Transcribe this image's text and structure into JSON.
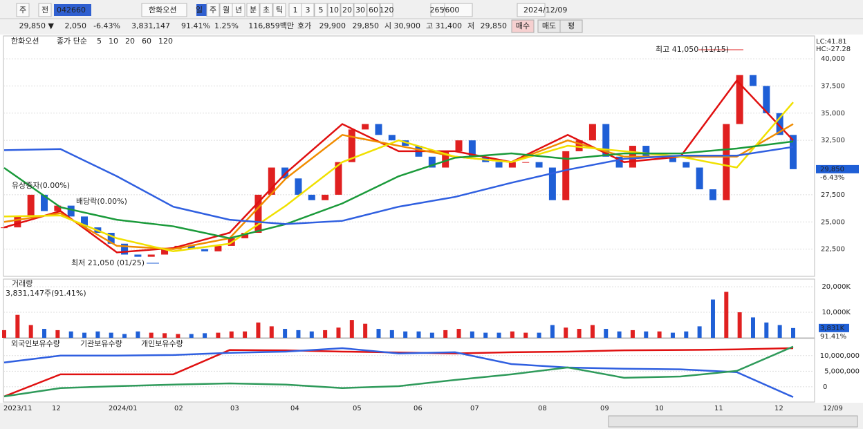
{
  "toolbar": {
    "items": [
      "주",
      "전",
      "042660",
      "한화오션",
      "일",
      "주",
      "월",
      "년",
      "분",
      "초",
      "틱",
      "1",
      "3",
      "5",
      "10",
      "20",
      "30",
      "60",
      "120",
      "265",
      "/600",
      "2024/12/09"
    ]
  },
  "info_bar": {
    "items": [
      "29,850 ▼",
      "2,050",
      "-6.43%",
      "3,831,147",
      "91.41%",
      "1.25%",
      "116,859백만",
      "호가",
      "29,900",
      "29,850",
      "시",
      "30,900",
      "고",
      "31,400",
      "저",
      "29,850",
      "매수",
      "매도",
      "평"
    ]
  },
  "x_labels": [
    "2023/11",
    "12",
    "2024/01",
    "02",
    "03",
    "04",
    "05",
    "06",
    "07",
    "08",
    "09",
    "10",
    "11",
    "12",
    "12/09"
  ],
  "chart_data": [
    {
      "type": "candlestick",
      "title": "한화오션",
      "legend_label": "종가 단순",
      "up_color": "#e02020",
      "down_color": "#1f5fd6",
      "values": [
        24500,
        25500,
        27500,
        26000,
        26500,
        25500,
        24500,
        24000,
        23000,
        22000,
        21800,
        22000,
        22500,
        22800,
        22500,
        22300,
        22800,
        23500,
        24000,
        27500,
        30000,
        29000,
        27500,
        27000,
        27500,
        30500,
        33500,
        34000,
        33000,
        32500,
        32000,
        31000,
        30000,
        31500,
        32500,
        31000,
        30500,
        30000,
        30500,
        30500,
        30000,
        27000,
        31500,
        32500,
        34000,
        31000,
        30000,
        32000,
        31000,
        31000,
        30500,
        30000,
        28000,
        27000,
        34000,
        38500,
        37500,
        35000,
        33000,
        29850
      ],
      "series": [
        {
          "name": "5",
          "color": "#e01010",
          "values": [
            24500,
            26000,
            22200,
            22600,
            24000,
            29500,
            34000,
            31500,
            31500,
            30500,
            33000,
            30500,
            31000,
            38000,
            32500
          ]
        },
        {
          "name": "10",
          "color": "#f08c00",
          "values": [
            25000,
            25800,
            22800,
            22500,
            23500,
            29000,
            33000,
            32000,
            31000,
            30500,
            32500,
            31000,
            31000,
            31000,
            34000
          ]
        },
        {
          "name": "20",
          "color": "#f0e000",
          "values": [
            25500,
            25600,
            23500,
            22300,
            23000,
            26500,
            30500,
            32500,
            31000,
            30500,
            32000,
            31500,
            31000,
            30000,
            36000
          ]
        },
        {
          "name": "60",
          "color": "#1a9a3a",
          "values": [
            29970,
            26350,
            25200,
            24600,
            23500,
            24800,
            26700,
            29200,
            30900,
            31300,
            30800,
            31300,
            31300,
            31750,
            32400
          ]
        },
        {
          "name": "120",
          "color": "#2f5fe0",
          "values": [
            31600,
            31700,
            29200,
            26400,
            25200,
            24800,
            25100,
            26400,
            27300,
            28600,
            29800,
            30800,
            31100,
            31100,
            31900
          ]
        }
      ],
      "ylim": [
        20000,
        42100
      ],
      "yticks": [
        {
          "value": 40000,
          "label": "40,000"
        },
        {
          "value": 37500,
          "label": "37,500"
        },
        {
          "value": 35000,
          "label": "35,000"
        },
        {
          "value": 32500,
          "label": "32,500"
        },
        {
          "value": 27500,
          "label": "27,500"
        },
        {
          "value": 25000,
          "label": "25,000"
        },
        {
          "value": 22500,
          "label": "22,500"
        }
      ],
      "lc_label": "LC:41.81",
      "hc_label": "HC:-27.28",
      "high_annotation": "최고 41,050 (11/15)",
      "low_annotation": "최저 21,050 (01/25)",
      "event_labels": [
        "유상증자(0.00%)",
        "배당락(0.00%)"
      ],
      "current_price": {
        "value": 29850,
        "label": "29,850"
      },
      "current_change": "-6.43%"
    },
    {
      "type": "bar",
      "title": "거래량",
      "subtitle": "3,831,147주(91.41%)",
      "values": [
        3000,
        9000,
        5000,
        3500,
        3000,
        2500,
        2000,
        2500,
        2000,
        1500,
        2500,
        2000,
        1800,
        1500,
        1500,
        1800,
        2000,
        2500,
        2500,
        6000,
        4500,
        3500,
        3000,
        2500,
        3000,
        4000,
        7000,
        5500,
        3500,
        3000,
        2500,
        2500,
        2000,
        3000,
        3500,
        2500,
        2000,
        2000,
        2500,
        2000,
        2000,
        5000,
        4000,
        3500,
        5000,
        3500,
        2500,
        3000,
        2500,
        2500,
        2000,
        2500,
        4500,
        15000,
        18000,
        10000,
        8000,
        6000,
        5000,
        3831
      ],
      "ylim": [
        0,
        23000
      ],
      "yticks": [
        {
          "value": 20000,
          "label": "20,000K"
        },
        {
          "value": 10000,
          "label": "10,000K"
        }
      ],
      "current_value": {
        "value": 3831,
        "label": "3,831K"
      },
      "current_ratio": "91.41%"
    },
    {
      "type": "line",
      "series": [
        {
          "name": "외국인보유수량",
          "color": "#e01010",
          "values": [
            -3100000,
            4000000,
            4000000,
            4000000,
            11800000,
            11700000,
            11300000,
            11000000,
            10700000,
            11100000,
            11300000,
            11700000,
            11800000,
            12000000,
            12400000
          ]
        },
        {
          "name": "기관보유수량",
          "color": "#2f5fe0",
          "values": [
            7800000,
            10000000,
            10000000,
            10200000,
            10900000,
            11300000,
            12400000,
            10700000,
            11100000,
            7300000,
            6200000,
            5800000,
            5600000,
            4700000,
            -3300000
          ]
        },
        {
          "name": "개인보유수량",
          "color": "#2e9a5a",
          "values": [
            -3100000,
            -400000,
            200000,
            700000,
            1100000,
            700000,
            -400000,
            200000,
            2200000,
            4000000,
            6200000,
            2900000,
            3300000,
            5100000,
            12900000
          ]
        }
      ],
      "ylim": [
        -4900000,
        15500000
      ],
      "yticks": [
        {
          "value": 10000000,
          "label": "10,000,000"
        },
        {
          "value": 5000000,
          "label": "5,000,000"
        },
        0
      ]
    }
  ]
}
